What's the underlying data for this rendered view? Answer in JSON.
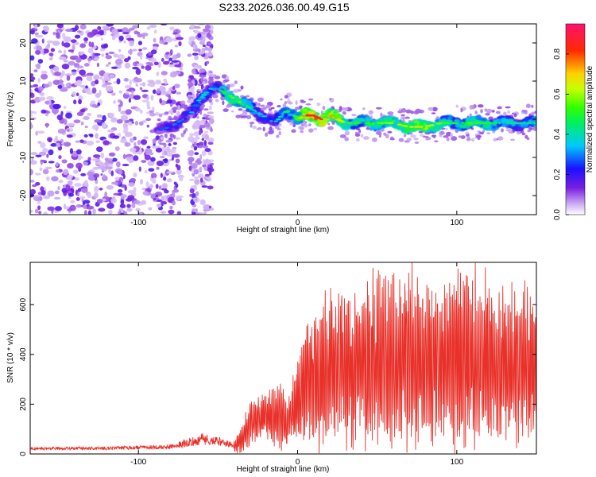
{
  "title": "S233.2026.036.00.49.G15",
  "colors": {
    "snr_line": "#e8312a",
    "frame": "#000000"
  },
  "chart_data": [
    {
      "type": "heatmap",
      "xlabel": "Height of straight line (km)",
      "ylabel": "Frequency (Hz)",
      "xlim": [
        -168,
        150
      ],
      "ylim": [
        -25,
        25
      ],
      "xticks": [
        -100,
        0,
        100
      ],
      "yticks": [
        20,
        10,
        0,
        -10,
        -20
      ],
      "colorbar": {
        "label": "Normalized spectral amplitude",
        "range": [
          0.0,
          0.95
        ],
        "ticks": [
          0.0,
          0.2,
          0.4,
          0.6,
          0.8
        ],
        "colormap": "rainbow (purple-blue-cyan-green-yellow-red-magenta)"
      },
      "ridge": {
        "x": [
          -88,
          -80,
          -72,
          -66,
          -62,
          -55,
          -50,
          -46,
          -42,
          -38,
          -34,
          -30,
          -26,
          -22,
          -18,
          -15,
          -12,
          -8,
          -4,
          0,
          5,
          10,
          15,
          20,
          25,
          30,
          40,
          50,
          60,
          70,
          80,
          90,
          100,
          110,
          120,
          130,
          140,
          150
        ],
        "frequency": [
          -3,
          -2,
          0,
          2,
          5,
          8,
          8,
          7,
          6,
          5,
          4,
          3,
          2,
          1,
          0,
          -1,
          0,
          2,
          2,
          0,
          1,
          1,
          0,
          1,
          0,
          -1,
          -1,
          -1,
          -1,
          -2,
          -2,
          -1,
          -1,
          -1,
          -1,
          -1,
          -1,
          -1
        ],
        "amplitude": [
          0.25,
          0.3,
          0.3,
          0.35,
          0.4,
          0.35,
          0.3,
          0.5,
          0.55,
          0.6,
          0.55,
          0.45,
          0.4,
          0.35,
          0.3,
          0.35,
          0.4,
          0.45,
          0.5,
          0.55,
          0.8,
          0.9,
          0.85,
          0.75,
          0.7,
          0.55,
          0.5,
          0.55,
          0.6,
          0.65,
          0.7,
          0.55,
          0.5,
          0.55,
          0.5,
          0.45,
          0.4,
          0.45
        ]
      }
    },
    {
      "type": "line",
      "xlabel": "Height of straight line (km)",
      "ylabel": "SNR (10 * v/v)",
      "xlim": [
        -168,
        150
      ],
      "ylim": [
        0,
        770
      ],
      "xticks": [
        -100,
        0,
        100
      ],
      "yticks": [
        0,
        200,
        400,
        600
      ],
      "series": [
        {
          "envelope_x": [
            -168,
            -120,
            -80,
            -60,
            -50,
            -40,
            -35,
            -30,
            -20,
            -10,
            -5,
            0,
            5,
            20,
            40,
            60,
            80,
            100,
            120,
            140,
            150
          ],
          "baseline": [
            20,
            20,
            25,
            50,
            45,
            30,
            60,
            120,
            150,
            140,
            130,
            220,
            280,
            330,
            360,
            380,
            360,
            370,
            380,
            350,
            360
          ],
          "amplitude": [
            10,
            10,
            15,
            40,
            30,
            20,
            60,
            80,
            90,
            130,
            100,
            180,
            250,
            300,
            330,
            360,
            330,
            350,
            340,
            300,
            300
          ]
        }
      ]
    }
  ]
}
